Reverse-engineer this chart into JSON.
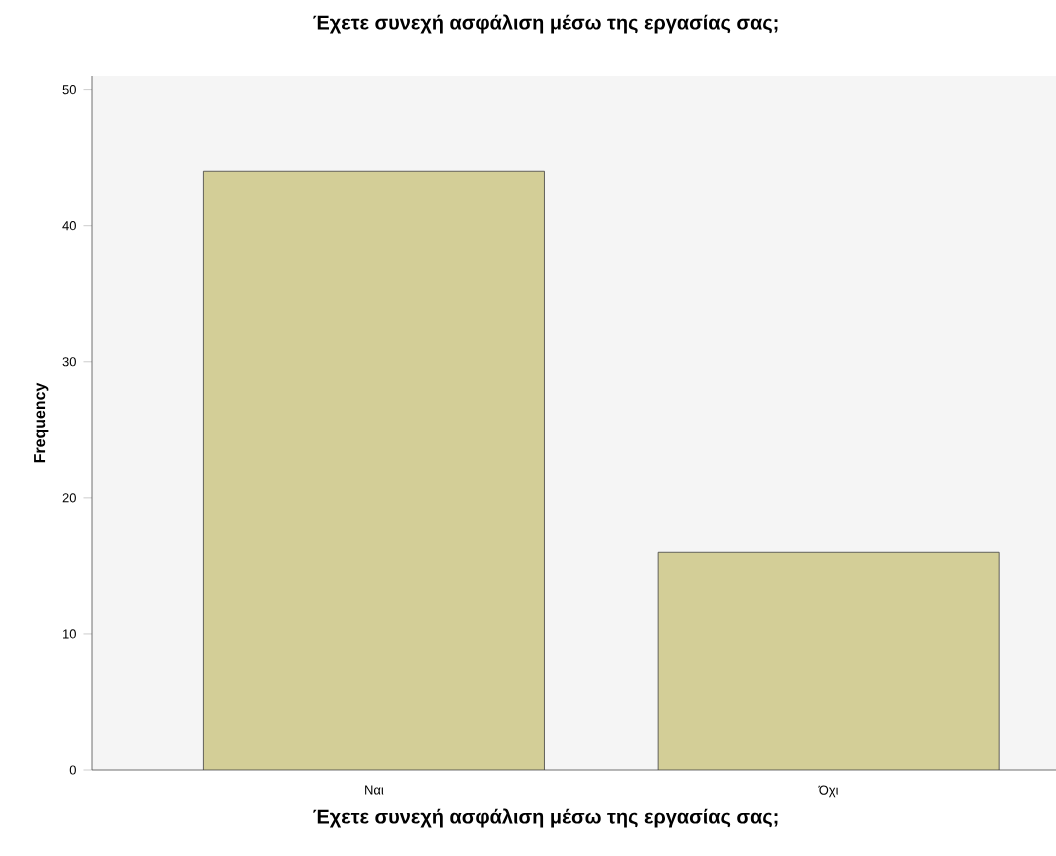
{
  "chart_data": {
    "type": "bar",
    "title": "Έχετε συνεχή ασφάλιση μέσω της εργασίας σας;",
    "xlabel": "Έχετε συνεχή ασφάλιση μέσω της εργασίας σας;",
    "ylabel": "Frequency",
    "categories": [
      "Ναι",
      "Όχι"
    ],
    "values": [
      44,
      16
    ],
    "color": "#d3ce97",
    "ylim": [
      0,
      51
    ],
    "yticks": [
      0,
      10,
      20,
      30,
      40,
      50
    ],
    "grid": false
  }
}
